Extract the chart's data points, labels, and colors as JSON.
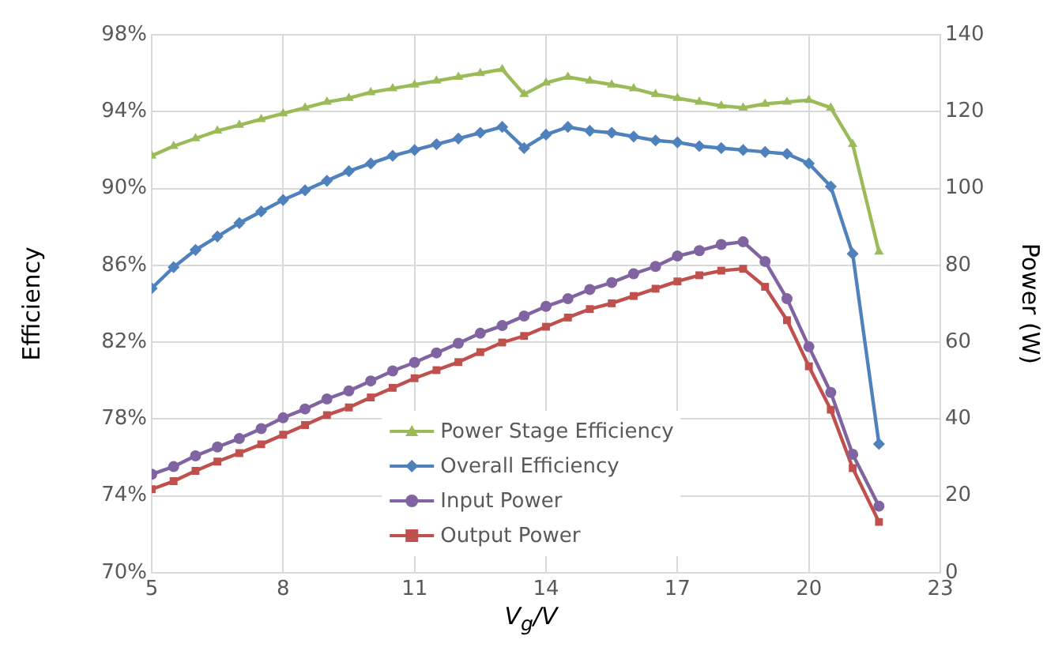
{
  "chart_data": {
    "type": "line",
    "xlabel": "V$_{g}$/V",
    "ylabel": "Efficiency",
    "y2label": "Power (W)",
    "x": [
      5,
      5.5,
      6,
      6.5,
      7,
      7.5,
      8,
      8.5,
      9,
      9.5,
      10,
      10.5,
      11,
      11.5,
      12,
      12.5,
      13,
      13.5,
      14,
      14.5,
      15,
      15.5,
      16,
      16.5,
      17,
      17.5,
      18,
      18.5,
      19,
      19.5,
      20,
      20.5,
      21,
      21.6
    ],
    "series": [
      {
        "name": "Power Stage Efficiency",
        "color": "#9bbb59",
        "marker": "triangle",
        "values": [
          91.7,
          92.2,
          92.6,
          93.0,
          93.3,
          93.6,
          93.9,
          94.2,
          94.5,
          94.7,
          95.0,
          95.2,
          95.4,
          95.6,
          95.8,
          96.0,
          96.2,
          94.9,
          95.5,
          95.8,
          95.6,
          95.4,
          95.2,
          94.9,
          94.7,
          94.5,
          94.3,
          94.2,
          94.4,
          94.5,
          94.6,
          94.2,
          92.3,
          86.7
        ]
      },
      {
        "name": "Overall Efficiency",
        "color": "#4f81bd",
        "marker": "diamond",
        "values": [
          84.8,
          85.9,
          86.8,
          87.5,
          88.2,
          88.8,
          89.4,
          89.9,
          90.4,
          90.9,
          91.3,
          91.7,
          92.0,
          92.3,
          92.6,
          92.9,
          93.2,
          92.1,
          92.8,
          93.2,
          93.0,
          92.9,
          92.7,
          92.5,
          92.4,
          92.2,
          92.1,
          92.0,
          91.9,
          91.8,
          91.3,
          90.1,
          86.6,
          76.7
        ]
      },
      {
        "name": "Input Power",
        "color": "#8064a2",
        "marker": "circle",
        "axis": "y2",
        "values": [
          25.6,
          27.6,
          30.4,
          32.7,
          34.9,
          37.5,
          40.3,
          42.6,
          45.2,
          47.3,
          49.9,
          52.5,
          54.7,
          57.2,
          59.7,
          62.3,
          64.3,
          66.8,
          69.3,
          71.3,
          73.7,
          75.5,
          77.8,
          79.7,
          82.4,
          83.8,
          85.4,
          86.1,
          81.0,
          71.3,
          58.8,
          46.9,
          30.8,
          17.3
        ]
      },
      {
        "name": "Output Power",
        "color": "#c0504d",
        "marker": "square",
        "axis": "y2",
        "values": [
          21.7,
          23.8,
          26.5,
          28.9,
          31.1,
          33.4,
          35.9,
          38.4,
          41.0,
          43.0,
          45.6,
          48.1,
          50.6,
          52.7,
          54.8,
          57.4,
          59.9,
          61.6,
          64.0,
          66.4,
          68.6,
          70.1,
          72.0,
          73.9,
          75.8,
          77.4,
          78.6,
          79.1,
          74.4,
          65.7,
          53.7,
          42.4,
          27.2,
          13.2
        ]
      }
    ],
    "xlim": [
      5,
      23
    ],
    "xticks": [
      5,
      8,
      11,
      14,
      17,
      20,
      23
    ],
    "ylim": [
      70,
      98
    ],
    "yticks": [
      {
        "value": 70,
        "label": "70%"
      },
      {
        "value": 74,
        "label": "74%"
      },
      {
        "value": 78,
        "label": "78%"
      },
      {
        "value": 82,
        "label": "82%"
      },
      {
        "value": 86,
        "label": "86%"
      },
      {
        "value": 90,
        "label": "90%"
      },
      {
        "value": 94,
        "label": "94%"
      },
      {
        "value": 98,
        "label": "98%"
      }
    ],
    "y2lim": [
      0,
      140
    ],
    "y2ticks": [
      0,
      20,
      40,
      60,
      80,
      100,
      120,
      140
    ],
    "grid": true,
    "legend": "bottom",
    "line_style": "solid"
  }
}
